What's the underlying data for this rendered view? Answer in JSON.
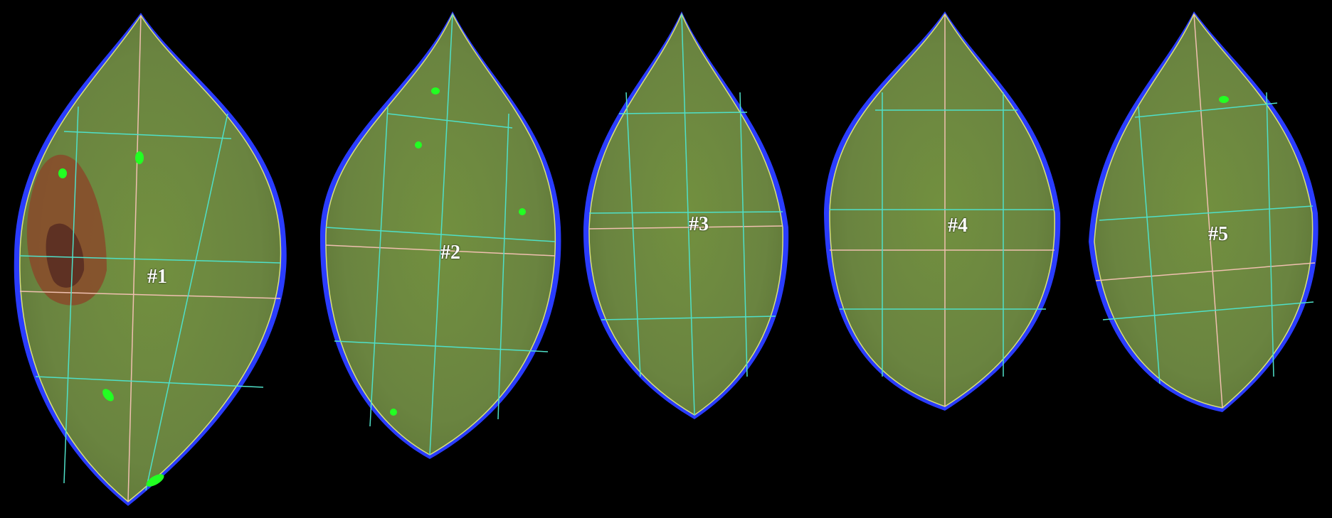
{
  "image": {
    "background_color": "#000000",
    "leaf_color": "#6e8a3d",
    "grid_color_primary": "#4fe0c8",
    "grid_color_secondary": "#f0c0b0",
    "edge_color": "#2a3cff",
    "lesion_color": "#7a3c2a",
    "marker_color": "#22ff22"
  },
  "leaves": [
    {
      "id": "leaf-1",
      "label": "#1"
    },
    {
      "id": "leaf-2",
      "label": "#2"
    },
    {
      "id": "leaf-3",
      "label": "#3"
    },
    {
      "id": "leaf-4",
      "label": "#4"
    },
    {
      "id": "leaf-5",
      "label": "#5"
    }
  ]
}
